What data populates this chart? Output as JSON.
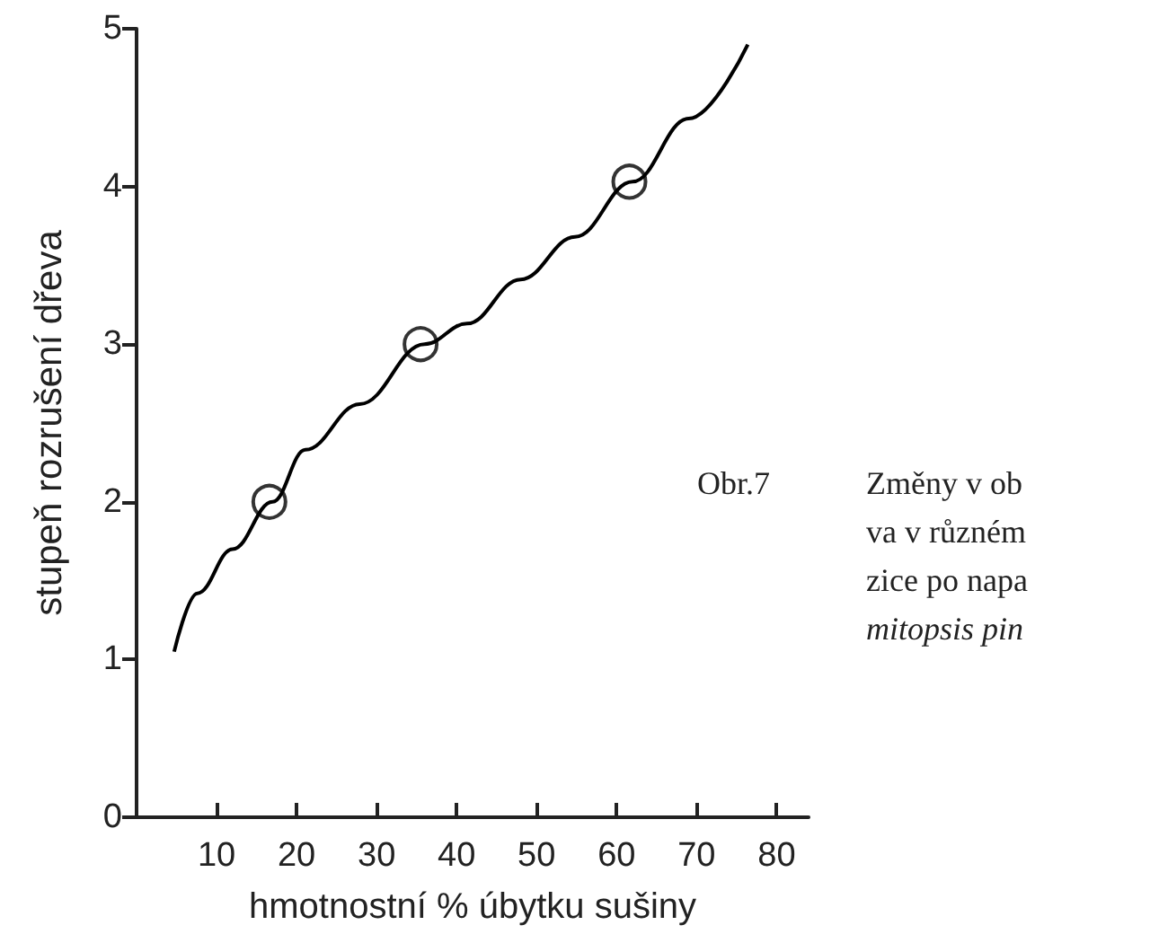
{
  "chart_data": {
    "type": "line",
    "xlabel": "hmotnostní % úbytku sušiny",
    "ylabel": "stupeň rozrušení dřeva",
    "xlim": [
      0,
      84
    ],
    "xticks": [
      10,
      20,
      30,
      40,
      50,
      60,
      70,
      80
    ],
    "ylim": [
      0,
      5
    ],
    "yticks": [
      0,
      1,
      2,
      3,
      4,
      5
    ],
    "grid": false,
    "series": [
      {
        "color": "#000000",
        "marker": "none",
        "x": [
          4.7,
          7.6,
          12,
          17,
          21.1,
          27.9,
          36,
          41.3,
          48,
          54.8,
          62,
          69,
          76.4
        ],
        "values": [
          1.05,
          1.42,
          1.7,
          2.0,
          2.33,
          2.62,
          3.0,
          3.13,
          3.41,
          3.68,
          4.03,
          4.43,
          4.9
        ]
      },
      {
        "type": "scatter",
        "color": "#000000",
        "marker": "circle",
        "x": [
          16.6,
          35.5,
          61.6
        ],
        "values": [
          2,
          3,
          4.03
        ]
      }
    ],
    "annotations": [
      "Obr.7",
      "Změny v ob",
      "va v různém",
      "zice po napa",
      "mitopsis pin"
    ]
  }
}
